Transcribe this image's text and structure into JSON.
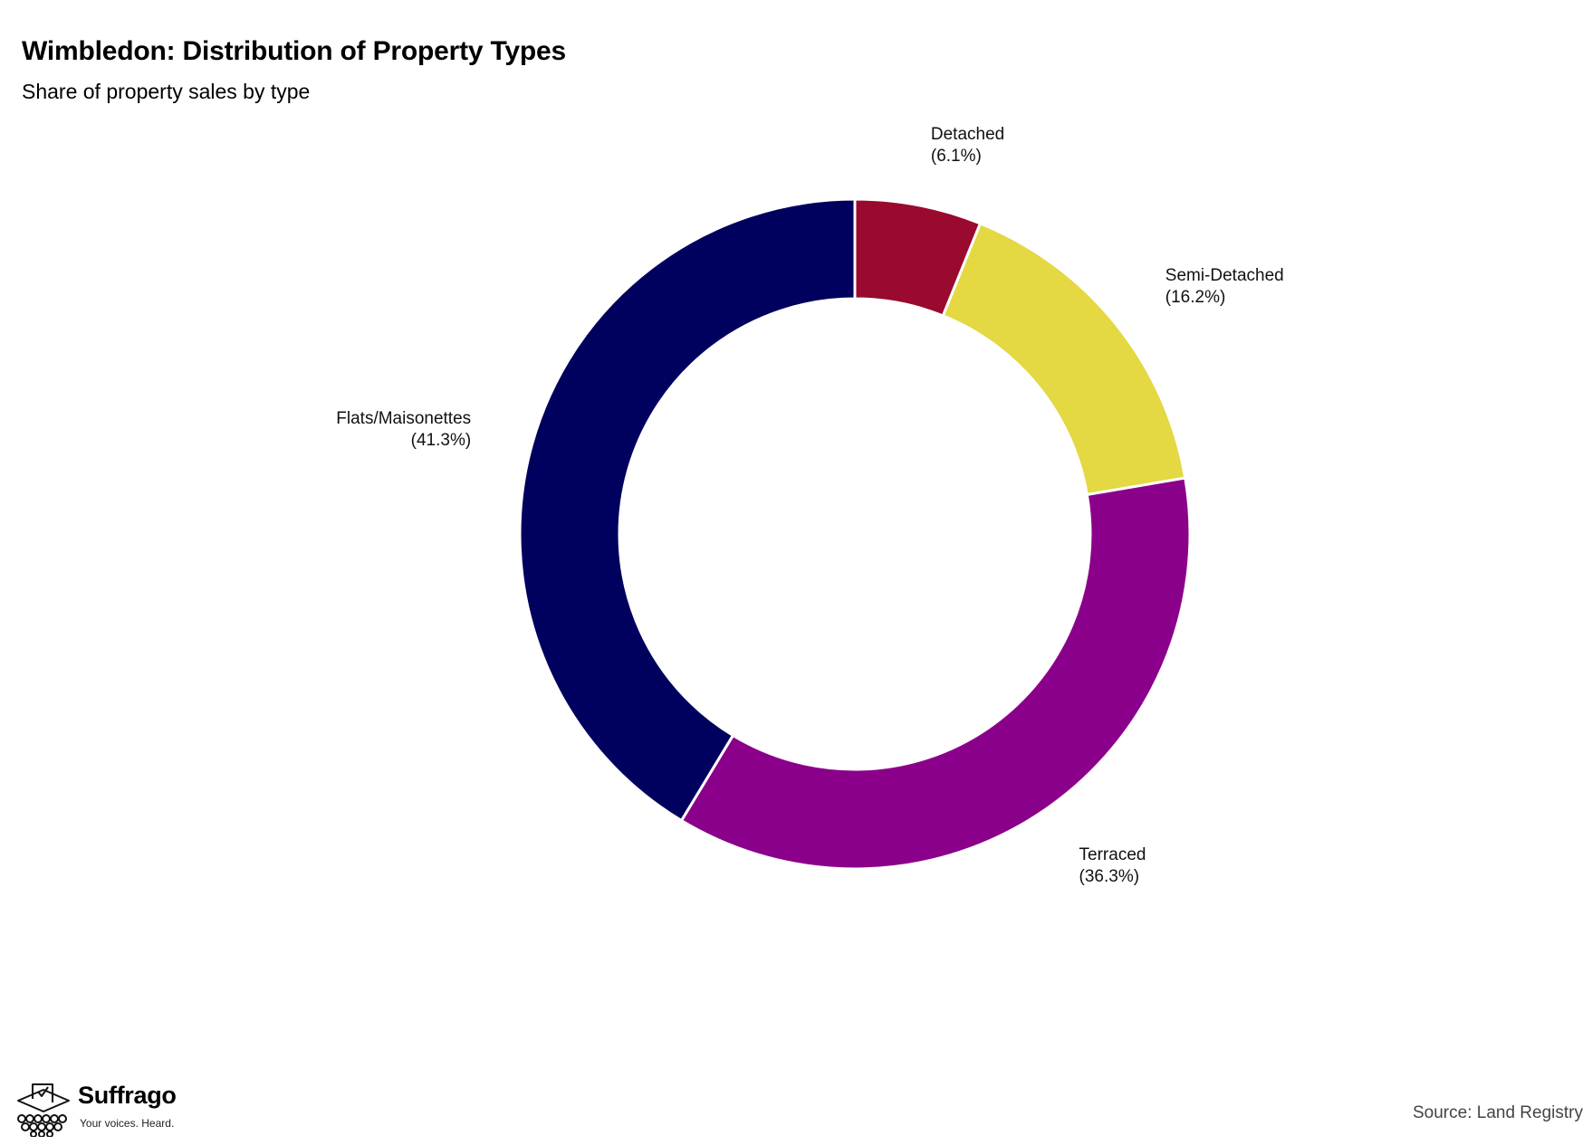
{
  "header": {
    "title": "Wimbledon: Distribution of Property Types",
    "subtitle": "Share of property sales by type"
  },
  "chart_data": {
    "type": "pie",
    "variant": "donut",
    "title": "Wimbledon: Distribution of Property Types",
    "subtitle": "Share of property sales by type",
    "slices": [
      {
        "label": "Detached",
        "value": 6.1,
        "value_label": "(6.1%)",
        "color": "#990a2e"
      },
      {
        "label": "Semi-Detached",
        "value": 16.2,
        "value_label": "(16.2%)",
        "color": "#e4d843"
      },
      {
        "label": "Terraced",
        "value": 36.3,
        "value_label": "(36.3%)",
        "color": "#8b008b"
      },
      {
        "label": "Flats/Maisonettes",
        "value": 41.3,
        "value_label": "(41.3%)",
        "color": "#00005e"
      }
    ],
    "start": "top",
    "direction": "clockwise",
    "legend": "none"
  },
  "footer": {
    "logo_name": "Suffrago",
    "logo_tagline": "Your voices. Heard.",
    "source": "Source: Land Registry",
    "logo_icon": "ballot-box-icon"
  }
}
